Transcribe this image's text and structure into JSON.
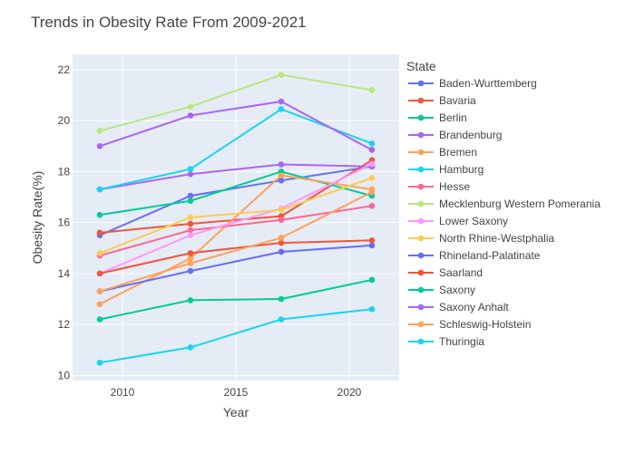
{
  "chart_data": {
    "type": "line",
    "title": "Trends in Obesity Rate From 2009-2021",
    "xlabel": "Year",
    "ylabel": "Obesity Rate(%)",
    "xlim": [
      2007.8,
      2022.2
    ],
    "ylim": [
      9.8,
      22.6
    ],
    "x": [
      2009,
      2013,
      2017,
      2021
    ],
    "xticks": [
      2010,
      2015,
      2020
    ],
    "yticks": [
      10,
      12,
      14,
      16,
      18,
      20,
      22
    ],
    "grid": true,
    "legend": {
      "title": "State",
      "placement": "right"
    },
    "series": [
      {
        "name": "Baden-Wurttemberg",
        "color": "#636efa",
        "values": [
          15.5,
          17.05,
          17.65,
          18.2
        ]
      },
      {
        "name": "Bavaria",
        "color": "#EF553B",
        "values": [
          15.6,
          15.95,
          16.25,
          18.45
        ]
      },
      {
        "name": "Berlin",
        "color": "#00cc96",
        "values": [
          16.3,
          16.85,
          18.0,
          17.05
        ]
      },
      {
        "name": "Brandenburg",
        "color": "#ab63fa",
        "values": [
          17.3,
          17.9,
          18.28,
          18.2
        ]
      },
      {
        "name": "Bremen",
        "color": "#FFA15A",
        "values": [
          12.8,
          14.6,
          17.85,
          17.3
        ]
      },
      {
        "name": "Hamburg",
        "color": "#19d3f3",
        "values": [
          17.3,
          18.1,
          20.45,
          19.1
        ]
      },
      {
        "name": "Hesse",
        "color": "#FF6692",
        "values": [
          14.7,
          15.7,
          16.1,
          16.65
        ]
      },
      {
        "name": "Mecklenburg Western Pomerania",
        "color": "#B6E880",
        "values": [
          19.6,
          20.55,
          21.8,
          21.2
        ]
      },
      {
        "name": "Lower Saxony",
        "color": "#FF97FF",
        "values": [
          14.0,
          15.5,
          16.55,
          18.3
        ]
      },
      {
        "name": "North Rhine-Westphalia",
        "color": "#FECB52",
        "values": [
          14.8,
          16.2,
          16.5,
          17.75
        ]
      },
      {
        "name": "Rhineland-Palatinate",
        "color": "#636efa",
        "values": [
          13.3,
          14.1,
          14.85,
          15.1
        ]
      },
      {
        "name": "Saarland",
        "color": "#EF553B",
        "values": [
          14.0,
          14.8,
          15.2,
          15.3
        ]
      },
      {
        "name": "Saxony",
        "color": "#00cc96",
        "values": [
          12.2,
          12.95,
          13.0,
          13.75
        ]
      },
      {
        "name": "Saxony Anhalt",
        "color": "#ab63fa",
        "values": [
          19.0,
          20.2,
          20.75,
          18.85
        ]
      },
      {
        "name": "Schleswig-Holstein",
        "color": "#FFA15A",
        "values": [
          13.3,
          14.4,
          15.4,
          17.2
        ]
      },
      {
        "name": "Thuringia",
        "color": "#19d3f3",
        "values": [
          10.5,
          11.1,
          12.2,
          12.6
        ]
      }
    ]
  }
}
